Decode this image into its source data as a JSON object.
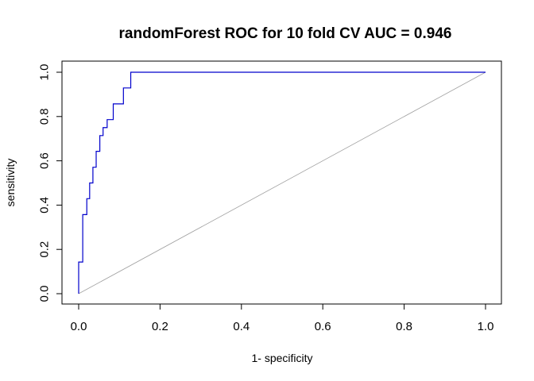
{
  "chart_data": {
    "type": "line",
    "title": "randomForest ROC for 10 fold CV  AUC = 0.946",
    "xlabel": "1- specificity",
    "ylabel": "sensitivity",
    "xlim": [
      0,
      1
    ],
    "ylim": [
      0,
      1
    ],
    "x_ticks": [
      "0.0",
      "0.2",
      "0.4",
      "0.6",
      "0.8",
      "1.0"
    ],
    "y_ticks": [
      "0.0",
      "0.2",
      "0.4",
      "0.6",
      "0.8",
      "1.0"
    ],
    "grid": false,
    "legend": "none",
    "series": [
      {
        "color": "#0000cc",
        "style": "step",
        "x": [
          0.0,
          0.0,
          0.01,
          0.01,
          0.02,
          0.02,
          0.027,
          0.027,
          0.035,
          0.035,
          0.043,
          0.043,
          0.052,
          0.052,
          0.06,
          0.06,
          0.07,
          0.07,
          0.077,
          0.077,
          0.085,
          0.085,
          0.095,
          0.095,
          0.11,
          0.11,
          0.128,
          0.128,
          1.0
        ],
        "y": [
          0.0,
          0.143,
          0.143,
          0.357,
          0.357,
          0.429,
          0.429,
          0.5,
          0.5,
          0.571,
          0.571,
          0.643,
          0.643,
          0.714,
          0.714,
          0.75,
          0.75,
          0.786,
          0.786,
          0.786,
          0.786,
          0.857,
          0.857,
          0.857,
          0.857,
          0.929,
          0.929,
          1.0,
          1.0
        ]
      },
      {
        "color": "#a0a0a0",
        "style": "diagonal",
        "x": [
          0,
          1
        ],
        "y": [
          0,
          1
        ]
      }
    ]
  }
}
